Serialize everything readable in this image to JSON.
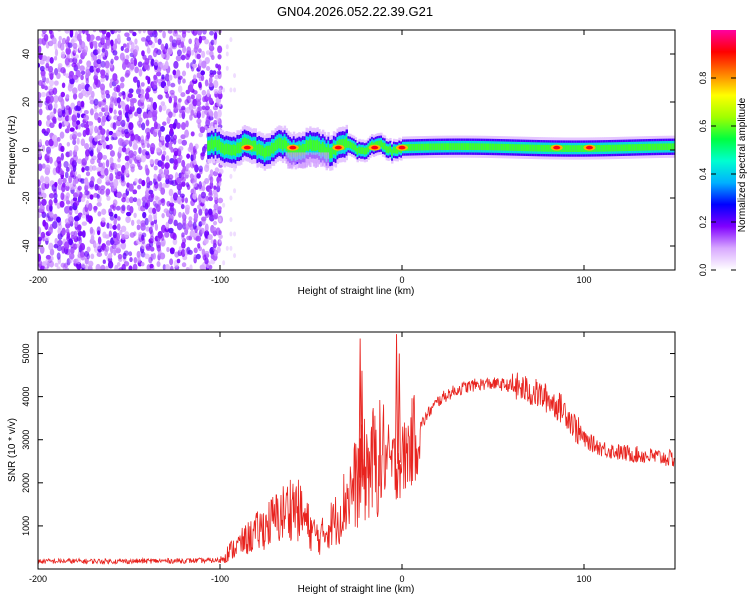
{
  "title": "GN04.2026.052.22.39.G21",
  "chart_data": [
    {
      "type": "heatmap",
      "name": "spectrogram",
      "xlabel": "Height of straight line (km)",
      "ylabel": "Frequency (Hz)",
      "xlim": [
        -200,
        150
      ],
      "ylim": [
        -50,
        50
      ],
      "xticks": [
        -200,
        -100,
        0,
        100
      ],
      "xtick_labels": [
        "-200",
        "-100",
        "0",
        "100"
      ],
      "yticks": [
        -40,
        -20,
        0,
        20,
        40
      ],
      "ytick_labels": [
        "-40",
        "-20",
        "0",
        "20",
        "40"
      ],
      "colorbar": {
        "label": "Normalized spectral amplitude",
        "range": [
          0,
          1
        ],
        "ticks": [
          0.0,
          0.2,
          0.4,
          0.6,
          0.8
        ],
        "tick_labels": [
          "0.0",
          "0.2",
          "0.4",
          "0.6",
          "0.8"
        ],
        "colors": [
          "#ffffff",
          "#d8a8ff",
          "#8000ff",
          "#0000ff",
          "#00b0ff",
          "#00ffd0",
          "#00ff40",
          "#a0ff00",
          "#ffff00",
          "#ff8000",
          "#ff0000",
          "#ff00a0"
        ]
      },
      "features": {
        "noise_region_x": [
          -200,
          -100
        ],
        "signal_band_x": [
          -107,
          150
        ],
        "signal_center_frequency_hz": 1,
        "signal_halfwidth_hz": 4,
        "hotspots_x": [
          -85,
          -60,
          -35,
          -15,
          0,
          85,
          103
        ]
      }
    },
    {
      "type": "line",
      "name": "snr",
      "xlabel": "Height of straight line (km)",
      "ylabel": "SNR (10 * v/v)",
      "xlim": [
        -200,
        150
      ],
      "ylim": [
        0,
        5500
      ],
      "xticks": [
        -200,
        -100,
        0,
        100
      ],
      "xtick_labels": [
        "-200",
        "-100",
        "0",
        "100"
      ],
      "yticks": [
        1000,
        2000,
        3000,
        4000,
        5000
      ],
      "ytick_labels": [
        "1000",
        "2000",
        "3000",
        "4000",
        "5000"
      ],
      "color": "#e8231e",
      "series": [
        {
          "name": "SNR envelope",
          "x": [
            -200,
            -150,
            -100,
            -95,
            -85,
            -75,
            -65,
            -60,
            -55,
            -50,
            -45,
            -40,
            -35,
            -30,
            -25,
            -20,
            -15,
            -10,
            -5,
            0,
            5,
            10,
            15,
            20,
            25,
            30,
            35,
            40,
            45,
            50,
            55,
            60,
            65,
            70,
            75,
            80,
            85,
            90,
            95,
            100,
            110,
            120,
            130,
            140,
            150
          ],
          "values": [
            180,
            180,
            200,
            400,
            700,
            1000,
            1300,
            1500,
            1250,
            900,
            700,
            1000,
            1200,
            1700,
            2000,
            2300,
            2500,
            2600,
            2400,
            2500,
            2900,
            3300,
            3650,
            3900,
            4050,
            4150,
            4220,
            4270,
            4300,
            4300,
            4280,
            4250,
            4200,
            4120,
            4050,
            3950,
            3800,
            3650,
            3300,
            3000,
            2800,
            2700,
            2650,
            2600,
            2550
          ]
        }
      ],
      "spikes": [
        {
          "x": -23,
          "value": 5350
        },
        {
          "x": -22,
          "value": 4600
        },
        {
          "x": -3,
          "value": 5450
        },
        {
          "x": -1.5,
          "value": 5000
        }
      ]
    }
  ]
}
